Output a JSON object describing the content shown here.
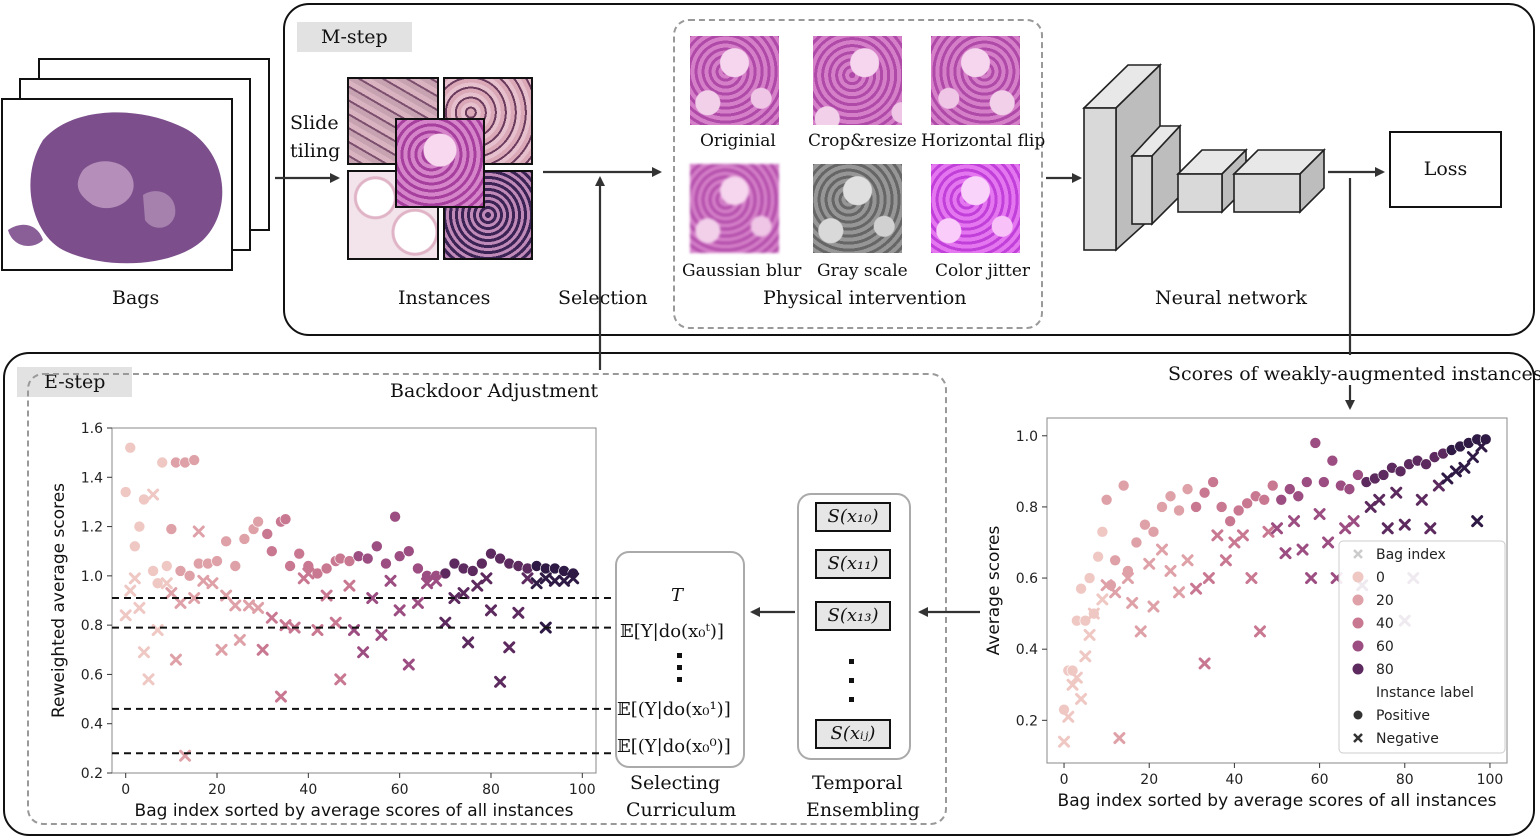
{
  "mstep": {
    "tag": "M-step",
    "bags_label": "Bags",
    "tiling_label_1": "Slide",
    "tiling_label_2": "tiling",
    "instances_label": "Instances",
    "selection_label": "Selection",
    "physical_label": "Physical intervention",
    "network_label": "Neural network",
    "loss_label": "Loss",
    "aug_captions": [
      "Originial",
      "Crop&resize",
      "Horizontal flip",
      "Gaussian blur",
      "Gray scale",
      "Color jitter"
    ]
  },
  "estep": {
    "tag": "E-step",
    "backdoor_label": "Backdoor Adjustment",
    "scores_label": "Scores of weakly-augmented instances",
    "curriculum": {
      "title_1": "Selecting",
      "title_2": "Curriculum",
      "entries": [
        "T",
        "𝔼[Y|do(x₀ᵗ)]",
        "𝔼[(Y|do(x₀¹)]",
        "𝔼[(Y|do(x₀⁰)]"
      ]
    },
    "ensemble": {
      "title_1": "Temporal",
      "title_2": "Ensembling",
      "entries": [
        "S(x₁₀)",
        "S(x₁₁)",
        "S(x₁₃)",
        "S(xᵢⱼ)"
      ]
    }
  },
  "colors": {
    "scatter_palette": [
      "#efc8c4",
      "#dfa1a8",
      "#c97892",
      "#9c4d81",
      "#5c2a5e",
      "#2e1a45"
    ]
  },
  "chart_data": [
    {
      "type": "scatter",
      "title": "",
      "xlabel": "Bag index sorted by average scores of all instances",
      "ylabel": "Reweighted average scores",
      "xlim": [
        -3,
        103
      ],
      "ylim": [
        0.2,
        1.6
      ],
      "xticks": [
        0,
        20,
        40,
        60,
        80,
        100
      ],
      "yticks": [
        0.2,
        0.4,
        0.6,
        0.8,
        1.0,
        1.2,
        1.4,
        1.6
      ],
      "hlines": [
        0.91,
        0.79,
        0.46,
        0.28
      ],
      "series": [
        {
          "name": "Positive",
          "marker": "circle",
          "points": [
            [
              0,
              1.34
            ],
            [
              1,
              1.52
            ],
            [
              2,
              1.12
            ],
            [
              3,
              1.2
            ],
            [
              4,
              1.31
            ],
            [
              6,
              1.02
            ],
            [
              8,
              1.46
            ],
            [
              10,
              1.19
            ],
            [
              11,
              1.46
            ],
            [
              13,
              1.46
            ],
            [
              15,
              1.47
            ],
            [
              7,
              0.97
            ],
            [
              9,
              1.04
            ],
            [
              12,
              1.02
            ],
            [
              14,
              1.0
            ],
            [
              16,
              1.05
            ],
            [
              18,
              1.05
            ],
            [
              20,
              1.06
            ],
            [
              22,
              1.14
            ],
            [
              24,
              1.04
            ],
            [
              26,
              1.15
            ],
            [
              28,
              1.19
            ],
            [
              29,
              1.22
            ],
            [
              31,
              1.17
            ],
            [
              32,
              1.1
            ],
            [
              34,
              1.22
            ],
            [
              35,
              1.23
            ],
            [
              36,
              1.04
            ],
            [
              38,
              1.09
            ],
            [
              40,
              1.04
            ],
            [
              42,
              1.01
            ],
            [
              44,
              1.03
            ],
            [
              46,
              1.06
            ],
            [
              47,
              1.07
            ],
            [
              49,
              1.06
            ],
            [
              51,
              1.08
            ],
            [
              53,
              1.07
            ],
            [
              55,
              1.12
            ],
            [
              57,
              1.05
            ],
            [
              59,
              1.24
            ],
            [
              60,
              1.08
            ],
            [
              62,
              1.1
            ],
            [
              64,
              1.03
            ],
            [
              66,
              1.0
            ],
            [
              68,
              1.0
            ],
            [
              70,
              1.01
            ],
            [
              72,
              1.05
            ],
            [
              74,
              1.03
            ],
            [
              76,
              1.02
            ],
            [
              78,
              1.05
            ],
            [
              80,
              1.09
            ],
            [
              82,
              1.07
            ],
            [
              84,
              1.05
            ],
            [
              86,
              1.04
            ],
            [
              88,
              1.03
            ],
            [
              90,
              1.04
            ],
            [
              92,
              1.03
            ],
            [
              94,
              1.03
            ],
            [
              96,
              1.02
            ],
            [
              98,
              1.01
            ]
          ]
        },
        {
          "name": "Negative",
          "marker": "cross",
          "points": [
            [
              0,
              0.84
            ],
            [
              1,
              0.94
            ],
            [
              2,
              0.99
            ],
            [
              3,
              0.87
            ],
            [
              4,
              0.69
            ],
            [
              5,
              0.58
            ],
            [
              6,
              1.33
            ],
            [
              7,
              0.78
            ],
            [
              9,
              0.97
            ],
            [
              10,
              0.93
            ],
            [
              11,
              0.66
            ],
            [
              12,
              0.89
            ],
            [
              13,
              0.27
            ],
            [
              15,
              0.91
            ],
            [
              16,
              1.18
            ],
            [
              17,
              0.98
            ],
            [
              19,
              0.97
            ],
            [
              21,
              0.7
            ],
            [
              22,
              0.92
            ],
            [
              24,
              0.88
            ],
            [
              25,
              0.74
            ],
            [
              27,
              0.88
            ],
            [
              29,
              0.87
            ],
            [
              30,
              0.7
            ],
            [
              32,
              0.83
            ],
            [
              34,
              0.51
            ],
            [
              35,
              0.8
            ],
            [
              37,
              0.79
            ],
            [
              39,
              0.99
            ],
            [
              40,
              1.01
            ],
            [
              42,
              0.78
            ],
            [
              44,
              0.92
            ],
            [
              46,
              0.81
            ],
            [
              47,
              0.58
            ],
            [
              49,
              0.96
            ],
            [
              50,
              0.78
            ],
            [
              52,
              0.69
            ],
            [
              54,
              0.91
            ],
            [
              56,
              0.76
            ],
            [
              58,
              0.98
            ],
            [
              60,
              0.86
            ],
            [
              62,
              0.64
            ],
            [
              64,
              0.89
            ],
            [
              66,
              0.97
            ],
            [
              68,
              0.98
            ],
            [
              70,
              0.81
            ],
            [
              72,
              0.91
            ],
            [
              74,
              0.93
            ],
            [
              75,
              0.73
            ],
            [
              77,
              0.96
            ],
            [
              79,
              0.99
            ],
            [
              80,
              0.86
            ],
            [
              82,
              0.57
            ],
            [
              84,
              0.71
            ],
            [
              86,
              0.85
            ],
            [
              88,
              0.99
            ],
            [
              90,
              0.97
            ],
            [
              92,
              0.99
            ],
            [
              94,
              0.98
            ],
            [
              96,
              0.98
            ],
            [
              98,
              0.99
            ],
            [
              92,
              0.79
            ]
          ]
        }
      ]
    },
    {
      "type": "scatter",
      "title": "",
      "xlabel": "Bag index sorted by average scores of all instances",
      "ylabel": "Average scores",
      "xlim": [
        -4,
        104
      ],
      "ylim": [
        0.08,
        1.05
      ],
      "xticks": [
        0,
        20,
        40,
        60,
        80,
        100
      ],
      "yticks": [
        0.2,
        0.4,
        0.6,
        0.8,
        1.0
      ],
      "legend": {
        "placement": "lower-right",
        "hue_title": "Bag index",
        "hue_levels": [
          "0",
          "20",
          "40",
          "60",
          "80"
        ],
        "style_title": "Instance label",
        "style_levels": [
          "Positive",
          "Negative"
        ]
      },
      "series": [
        {
          "name": "Positive",
          "marker": "circle",
          "points": [
            [
              0,
              0.23
            ],
            [
              1,
              0.34
            ],
            [
              2,
              0.34
            ],
            [
              3,
              0.48
            ],
            [
              4,
              0.57
            ],
            [
              5,
              0.48
            ],
            [
              6,
              0.6
            ],
            [
              7,
              0.5
            ],
            [
              8,
              0.66
            ],
            [
              9,
              0.73
            ],
            [
              10,
              0.82
            ],
            [
              11,
              0.58
            ],
            [
              12,
              0.65
            ],
            [
              14,
              0.86
            ],
            [
              15,
              0.62
            ],
            [
              17,
              0.7
            ],
            [
              19,
              0.75
            ],
            [
              21,
              0.73
            ],
            [
              23,
              0.8
            ],
            [
              25,
              0.83
            ],
            [
              27,
              0.79
            ],
            [
              29,
              0.85
            ],
            [
              31,
              0.8
            ],
            [
              33,
              0.84
            ],
            [
              35,
              0.87
            ],
            [
              37,
              0.8
            ],
            [
              39,
              0.76
            ],
            [
              41,
              0.79
            ],
            [
              43,
              0.81
            ],
            [
              45,
              0.83
            ],
            [
              47,
              0.82
            ],
            [
              49,
              0.86
            ],
            [
              51,
              0.82
            ],
            [
              53,
              0.85
            ],
            [
              55,
              0.83
            ],
            [
              57,
              0.87
            ],
            [
              59,
              0.98
            ],
            [
              61,
              0.87
            ],
            [
              63,
              0.93
            ],
            [
              65,
              0.86
            ],
            [
              67,
              0.85
            ],
            [
              69,
              0.89
            ],
            [
              71,
              0.87
            ],
            [
              73,
              0.88
            ],
            [
              75,
              0.89
            ],
            [
              77,
              0.91
            ],
            [
              79,
              0.9
            ],
            [
              81,
              0.92
            ],
            [
              83,
              0.93
            ],
            [
              85,
              0.92
            ],
            [
              87,
              0.94
            ],
            [
              89,
              0.95
            ],
            [
              91,
              0.96
            ],
            [
              93,
              0.97
            ],
            [
              95,
              0.98
            ],
            [
              97,
              0.99
            ],
            [
              99,
              0.99
            ]
          ]
        },
        {
          "name": "Negative",
          "marker": "cross",
          "points": [
            [
              0,
              0.14
            ],
            [
              1,
              0.21
            ],
            [
              2,
              0.3
            ],
            [
              3,
              0.32
            ],
            [
              4,
              0.26
            ],
            [
              5,
              0.38
            ],
            [
              6,
              0.44
            ],
            [
              7,
              0.5
            ],
            [
              9,
              0.54
            ],
            [
              10,
              0.58
            ],
            [
              12,
              0.56
            ],
            [
              13,
              0.15
            ],
            [
              15,
              0.6
            ],
            [
              16,
              0.53
            ],
            [
              18,
              0.45
            ],
            [
              20,
              0.64
            ],
            [
              21,
              0.52
            ],
            [
              23,
              0.68
            ],
            [
              25,
              0.62
            ],
            [
              27,
              0.56
            ],
            [
              29,
              0.65
            ],
            [
              31,
              0.57
            ],
            [
              33,
              0.36
            ],
            [
              34,
              0.6
            ],
            [
              36,
              0.72
            ],
            [
              38,
              0.65
            ],
            [
              40,
              0.7
            ],
            [
              42,
              0.72
            ],
            [
              44,
              0.6
            ],
            [
              46,
              0.45
            ],
            [
              48,
              0.73
            ],
            [
              50,
              0.74
            ],
            [
              52,
              0.67
            ],
            [
              54,
              0.76
            ],
            [
              56,
              0.68
            ],
            [
              58,
              0.6
            ],
            [
              60,
              0.78
            ],
            [
              62,
              0.7
            ],
            [
              64,
              0.6
            ],
            [
              66,
              0.74
            ],
            [
              68,
              0.76
            ],
            [
              70,
              0.58
            ],
            [
              72,
              0.8
            ],
            [
              74,
              0.82
            ],
            [
              76,
              0.74
            ],
            [
              78,
              0.84
            ],
            [
              80,
              0.48
            ],
            [
              82,
              0.6
            ],
            [
              84,
              0.82
            ],
            [
              86,
              0.74
            ],
            [
              88,
              0.86
            ],
            [
              90,
              0.88
            ],
            [
              92,
              0.9
            ],
            [
              94,
              0.91
            ],
            [
              96,
              0.94
            ],
            [
              97,
              0.76
            ],
            [
              98,
              0.97
            ],
            [
              80,
              0.75
            ]
          ]
        }
      ]
    }
  ]
}
